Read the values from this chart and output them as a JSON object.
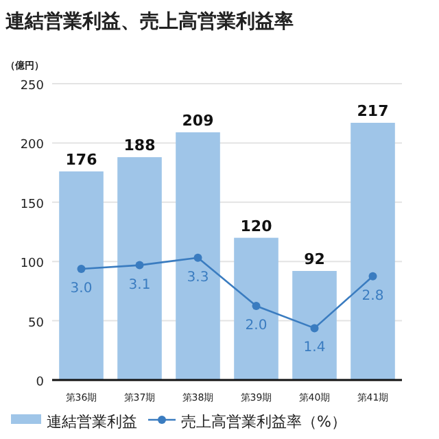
{
  "chart_data": {
    "type": "bar",
    "title": "連結営業利益、売上高営業利益率",
    "ylabel": "（億円）",
    "categories": [
      "第36期",
      "第37期",
      "第38期",
      "第39期",
      "第40期",
      "第41期"
    ],
    "series": [
      {
        "name": "連結営業利益",
        "color": "#9fc5e8",
        "values": [
          176,
          188,
          209,
          120,
          92,
          217
        ]
      },
      {
        "name": "売上高営業利益率（%）",
        "type": "line",
        "axis": "y2",
        "color": "#3a7cc0",
        "values": [
          3.0,
          3.1,
          3.3,
          2.0,
          1.4,
          2.8
        ],
        "value_labels": [
          "3.0",
          "3.1",
          "3.3",
          "2.0",
          "1.4",
          "2.8"
        ]
      }
    ],
    "ylim": [
      0,
      250
    ],
    "yticks": [
      0,
      50,
      100,
      150,
      200,
      250
    ],
    "y2lim": [
      0,
      8
    ],
    "grid": "y",
    "legend": "bottom",
    "marker": "circle",
    "data_labels": true
  }
}
